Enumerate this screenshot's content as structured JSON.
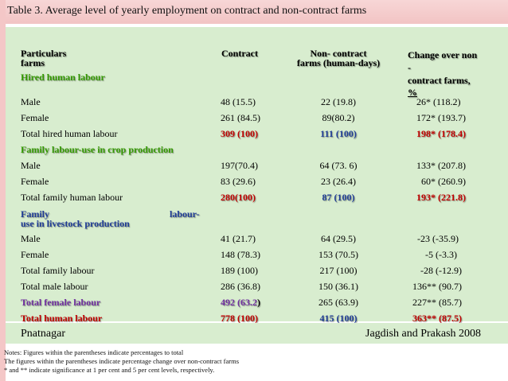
{
  "title": "Table 3. Average level of yearly employment on contract and non-contract farms",
  "colors": {
    "red": "#c00000",
    "purple": "#7030a0",
    "blue": "#1f3c96",
    "green": "#339900"
  },
  "header": {
    "particulars": "Particulars",
    "farms": "farms",
    "contract": "Contract",
    "noncontract_1": "Non- contract",
    "noncontract_2": "farms (human-days)",
    "change_1": "Change over non",
    "change_2": "-",
    "change_3": "contract    farms,",
    "change_4": "%"
  },
  "sections": {
    "hired": "Hired human labour",
    "family_crop": "Family labour-use in crop production",
    "family_live_1a": "Family",
    "family_live_1b": "labour-",
    "family_live_2": "use in livestock production"
  },
  "rows": {
    "hired_male": {
      "label": "Male",
      "contract": "48 (15.5)",
      "noncontract": "22 (19.8)",
      "change": "26* (118.2)"
    },
    "hired_female": {
      "label": "Female",
      "contract": "261 (84.5)",
      "noncontract": "89(80.2)",
      "change": "172* (193.7)"
    },
    "hired_total": {
      "label": "Total hired human labour",
      "contract": "309 (100)",
      "noncontract": "111 (100)",
      "change": "198* (178.4)"
    },
    "crop_male": {
      "label": "Male",
      "contract": "197(70.4)",
      "noncontract": "64 (73. 6)",
      "change": "133* (207.8)"
    },
    "crop_female": {
      "label": "Female",
      "contract": "83 (29.6)",
      "noncontract": "23 (26.4)",
      "change": "60* (260.9)"
    },
    "crop_total": {
      "label": "Total family human labour",
      "contract": "280(100)",
      "noncontract": "87 (100)",
      "change": "193* (221.8)"
    },
    "live_male": {
      "label": "Male",
      "contract": "41 (21.7)",
      "noncontract": "64 (29.5)",
      "change": "-23 (-35.9)"
    },
    "live_female": {
      "label": "Female",
      "contract": "148 (78.3)",
      "noncontract": "153 (70.5)",
      "change": "-5 (-3.3)"
    },
    "live_total": {
      "label": "Total family labour",
      "contract": "189 (100)",
      "noncontract": "217 (100)",
      "change": "-28 (-12.9)"
    },
    "total_male": {
      "label": "Total male labour",
      "contract": "286 (36.8)",
      "noncontract": "150 (36.1)",
      "change": "136** (90.7)"
    },
    "total_female": {
      "label": "Total female labour",
      "contract_main": "492 (63.2",
      "contract_tail": ")",
      "noncontract": "265 (63.9)",
      "change": "227** (85.7)"
    },
    "total_human": {
      "label": "Total human labour",
      "contract": "778 (100)",
      "noncontract": "415 (100)",
      "change": "363** (87.5)"
    }
  },
  "footer": {
    "left": "Pnatnagar",
    "right": "Jagdish and Prakash 2008"
  },
  "notes": [
    "Notes: Figures within the parentheses indicate percentages to total",
    "The figures within the parentheses indicate percentage change over non-contract farms",
    "* and ** indicate significance at 1 per cent and 5 per cent levels, respectively."
  ]
}
